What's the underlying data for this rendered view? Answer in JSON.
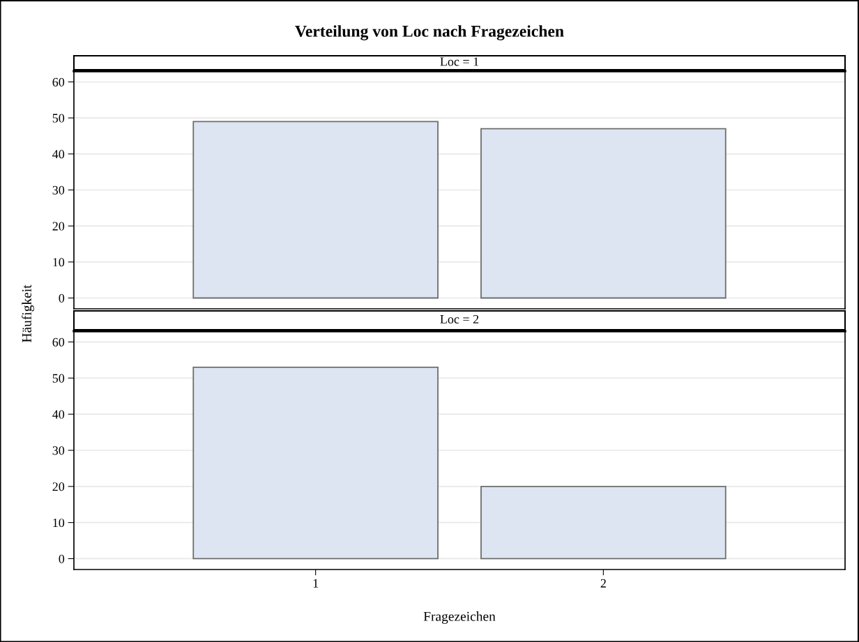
{
  "chart_data": [
    {
      "type": "bar",
      "title": "Verteilung von Loc nach Fragezeichen",
      "subtitle": "Loc = 1",
      "ylabel": "Häufigkeit",
      "categories": [
        "1",
        "2"
      ],
      "values": [
        49,
        47
      ],
      "color": "#dce5f1",
      "ylim": [
        -3,
        63
      ],
      "yticks": [
        0,
        10,
        20,
        30,
        40,
        50,
        60
      ],
      "grid": "y",
      "tick_labels": "y"
    },
    {
      "type": "bar",
      "subtitle": "Loc = 2",
      "xlabel": "Fragezeichen",
      "categories": [
        "1",
        "2"
      ],
      "values": [
        53,
        20
      ],
      "color": "#dce5f1",
      "ylim": [
        -3,
        63
      ],
      "yticks": [
        0,
        10,
        20,
        30,
        40,
        50,
        60
      ],
      "grid": "y"
    }
  ]
}
